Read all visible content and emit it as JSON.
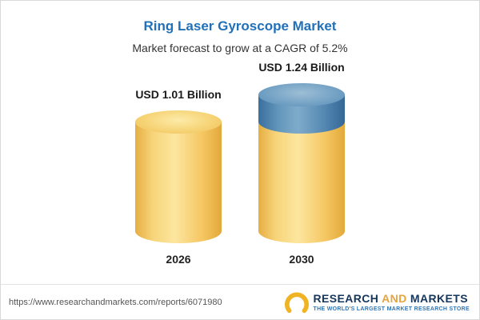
{
  "header": {
    "title": "Ring Laser Gyroscope Market",
    "subtitle": "Market forecast to grow at a CAGR of 5.2%"
  },
  "chart_data": {
    "type": "bar",
    "categories": [
      "2026",
      "2030"
    ],
    "values": [
      1.01,
      1.24
    ],
    "value_labels": [
      "USD 1.01 Billion",
      "USD 1.24 Billion"
    ],
    "unit": "USD Billion",
    "title": "Ring Laser Gyroscope Market",
    "subtitle": "Market forecast to grow at a CAGR of 5.2%",
    "cagr_pct": 5.2,
    "ylim": [
      0,
      1.4
    ],
    "grid": false,
    "legend_position": "none",
    "colors": {
      "bar_base": "#f5c661",
      "growth_cap": "#4f83ae",
      "title_accent": "#2170b8"
    }
  },
  "footer": {
    "url": "https://www.researchandmarkets.com/reports/6071980",
    "logo": {
      "word1": "RESEARCH",
      "word2": "AND",
      "word3": "MARKETS",
      "tagline": "THE WORLD'S LARGEST MARKET RESEARCH STORE"
    }
  }
}
